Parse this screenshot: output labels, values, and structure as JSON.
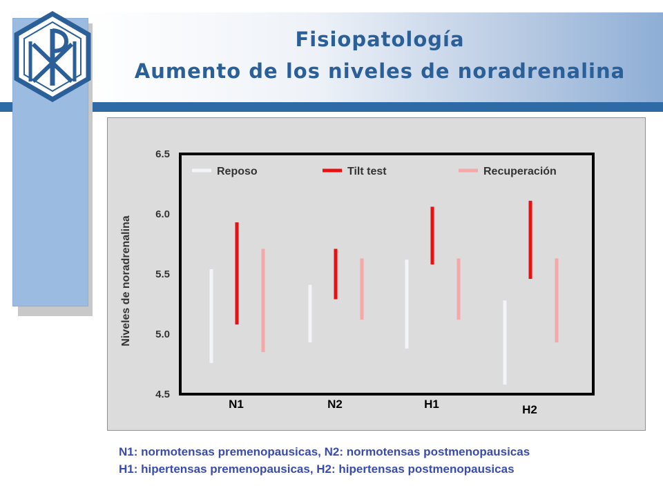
{
  "title": {
    "line1": "Fisiopatología",
    "line2": "Aumento de los niveles de noradrenalina"
  },
  "logo": {
    "name": "chi-rho-monogram-logo",
    "colors": {
      "stroke": "#2b5f98",
      "fill": "#ffffff"
    }
  },
  "colors": {
    "header_line": "#2e6aa6",
    "side_bar": "#9bbbe0",
    "title": "#2b5f98",
    "footnote": "#3a4bb0"
  },
  "chart_data": {
    "type": "range-bar",
    "title": "",
    "xlabel": "",
    "ylabel": "Niveles de noradrenalina",
    "ylim": [
      4.5,
      6.5
    ],
    "yticks": [
      "6.5",
      "6.0",
      "5.5",
      "5.0",
      "4.5"
    ],
    "ytick_values": [
      6.5,
      6.0,
      5.5,
      5.0,
      4.5
    ],
    "grid": false,
    "legend_position": "top",
    "categories": [
      "N1",
      "N2",
      "H1",
      "H2"
    ],
    "series": [
      {
        "name": "Reposo",
        "color": "#f2f4f8",
        "ranges": [
          [
            4.76,
            5.54
          ],
          [
            4.93,
            5.41
          ],
          [
            4.88,
            5.62
          ],
          [
            4.58,
            5.28
          ]
        ]
      },
      {
        "name": "Tilt test",
        "color": "#e81010",
        "ranges": [
          [
            5.08,
            5.93
          ],
          [
            5.29,
            5.71
          ],
          [
            5.58,
            6.06
          ],
          [
            5.46,
            6.11
          ]
        ]
      },
      {
        "name": "Recuperación",
        "color": "#f4a9a8",
        "ranges": [
          [
            4.85,
            5.71
          ],
          [
            5.12,
            5.63
          ],
          [
            5.12,
            5.63
          ],
          [
            4.93,
            5.63
          ]
        ]
      }
    ]
  },
  "footnotes": {
    "line1": "N1: normotensas premenopausicas, N2: normotensas postmenopausicas",
    "line2": "H1: hipertensas premenopausicas, H2: hipertensas postmenopausicas"
  }
}
